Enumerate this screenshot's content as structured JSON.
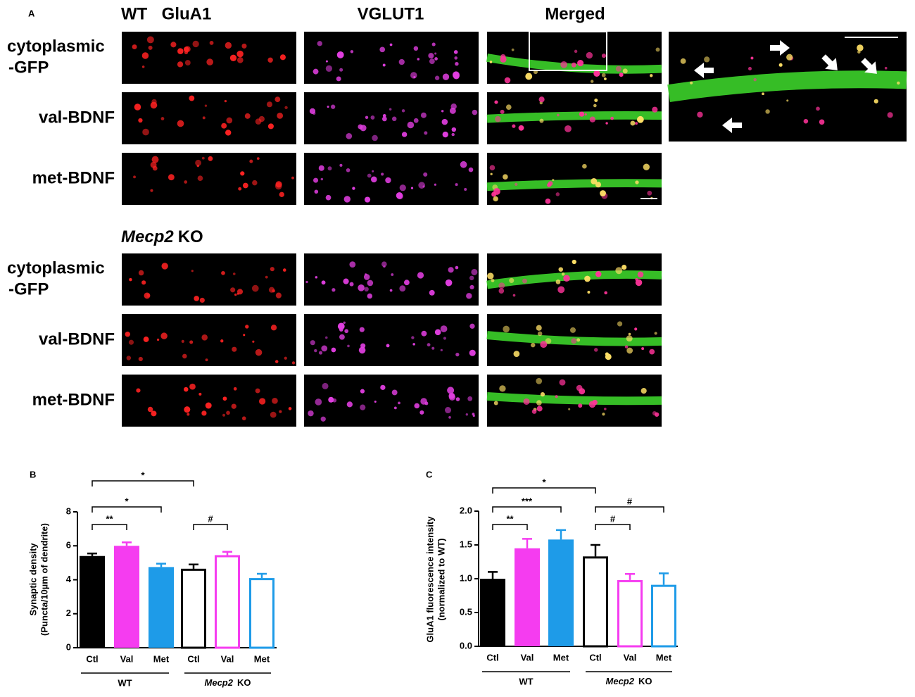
{
  "panel_a": {
    "label": "A",
    "columns": [
      "GluA1",
      "VGLUT1",
      "Merged"
    ],
    "groups": [
      {
        "title": "WT",
        "rows": [
          [
            "cytoplasmic",
            "-GFP"
          ],
          [
            "val-BDNF"
          ],
          [
            "met-BDNF"
          ]
        ]
      },
      {
        "title": {
          "italic": "Mecp2",
          "text": "KO"
        },
        "rows": [
          [
            "cytoplasmic",
            "-GFP"
          ],
          [
            "val-BDNF"
          ],
          [
            "met-BDNF"
          ]
        ]
      }
    ]
  },
  "chart_data": [
    {
      "type": "bar",
      "label": "B",
      "ylabel": [
        "Synaptic density",
        "(Puncta/10µm of dendrite)"
      ],
      "groups": [
        {
          "name": "WT",
          "categories": [
            "Ctl",
            "Val",
            "Met"
          ]
        },
        {
          "name": {
            "italic": "Mecp2",
            "text": "KO"
          },
          "categories": [
            "Ctl",
            "Val",
            "Met"
          ]
        }
      ],
      "values": [
        5.4,
        6.0,
        4.75,
        4.65,
        5.45,
        4.1
      ],
      "errors": [
        0.15,
        0.2,
        0.2,
        0.25,
        0.2,
        0.25
      ],
      "colors": [
        "#000000",
        "#f53cf0",
        "#1e9be8",
        "#000000",
        "#f53cf0",
        "#1e9be8"
      ],
      "filled": [
        true,
        true,
        true,
        false,
        false,
        false
      ],
      "ylim": [
        0,
        8
      ],
      "yticks": [
        0,
        2,
        4,
        6,
        8
      ],
      "significance": [
        {
          "pair": [
            0,
            3
          ],
          "label": "*"
        },
        {
          "pair": [
            0,
            2
          ],
          "label": "*"
        },
        {
          "pair": [
            0,
            1
          ],
          "label": "**"
        },
        {
          "pair": [
            3,
            4
          ],
          "label": "#"
        }
      ]
    },
    {
      "type": "bar",
      "label": "C",
      "ylabel": [
        "GluA1 fluorescence intensity",
        "(normalized to WT)"
      ],
      "groups": [
        {
          "name": "WT",
          "categories": [
            "Ctl",
            "Val",
            "Met"
          ]
        },
        {
          "name": {
            "italic": "Mecp2",
            "text": "KO"
          },
          "categories": [
            "Ctl",
            "Val",
            "Met"
          ]
        }
      ],
      "values": [
        1.0,
        1.45,
        1.58,
        1.33,
        0.98,
        0.91
      ],
      "errors": [
        0.1,
        0.14,
        0.14,
        0.17,
        0.09,
        0.17
      ],
      "colors": [
        "#000000",
        "#f53cf0",
        "#1e9be8",
        "#000000",
        "#f53cf0",
        "#1e9be8"
      ],
      "filled": [
        true,
        true,
        true,
        false,
        false,
        false
      ],
      "ylim": [
        0,
        2.0
      ],
      "yticks": [
        {
          "value": 0,
          "label": "0.0"
        },
        {
          "value": 0.5,
          "label": "0.5"
        },
        {
          "value": 1,
          "label": "1.0"
        },
        {
          "value": 1.5,
          "label": "1.5"
        },
        {
          "value": 2,
          "label": "2.0"
        }
      ],
      "significance": [
        {
          "pair": [
            0,
            3
          ],
          "label": "*"
        },
        {
          "pair": [
            0,
            2
          ],
          "label": "***"
        },
        {
          "pair": [
            0,
            1
          ],
          "label": "**"
        },
        {
          "pair": [
            3,
            5
          ],
          "label": "#"
        },
        {
          "pair": [
            3,
            4
          ],
          "label": "#"
        }
      ]
    }
  ]
}
